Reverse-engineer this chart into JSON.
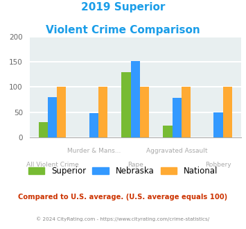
{
  "title_line1": "2019 Superior",
  "title_line2": "Violent Crime Comparison",
  "title_color": "#1a9de8",
  "categories": [
    "All Violent Crime",
    "Murder & Mans...",
    "Rape",
    "Aggravated Assault",
    "Robbery"
  ],
  "top_labels": [
    "",
    "Murder & Mans...",
    "",
    "Aggravated Assault",
    ""
  ],
  "bottom_labels": [
    "All Violent Crime",
    "",
    "Rape",
    "",
    "Robbery"
  ],
  "superior": [
    30,
    0,
    129,
    23,
    0
  ],
  "nebraska": [
    80,
    48,
    152,
    79,
    50
  ],
  "national": [
    100,
    100,
    100,
    100,
    100
  ],
  "superior_color": "#77bb33",
  "nebraska_color": "#3399ff",
  "national_color": "#ffaa33",
  "ylim": [
    0,
    200
  ],
  "yticks": [
    0,
    50,
    100,
    150,
    200
  ],
  "bg_color": "#e8eff0",
  "grid_color": "#ffffff",
  "footer_text": "Compared to U.S. average. (U.S. average equals 100)",
  "footer_color": "#cc3300",
  "copyright_text": "© 2024 CityRating.com - https://www.cityrating.com/crime-statistics/",
  "copyright_color": "#888888",
  "legend_labels": [
    "Superior",
    "Nebraska",
    "National"
  ],
  "bar_width": 0.22
}
